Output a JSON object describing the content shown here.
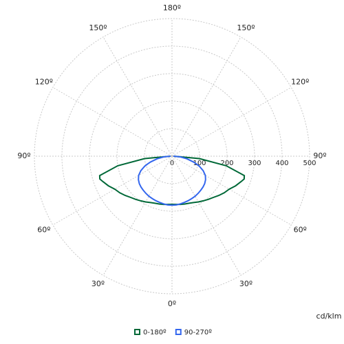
{
  "chart_data": {
    "type": "polar",
    "axis_label": "cd/klm",
    "rlim": [
      0,
      500
    ],
    "rticks": [
      0,
      100,
      200,
      300,
      400,
      500
    ],
    "angle_ticks": [
      {
        "value": 0,
        "label": "0º"
      },
      {
        "value": 30,
        "label": "30º"
      },
      {
        "value": 60,
        "label": "60º"
      },
      {
        "value": 90,
        "label": "90º"
      },
      {
        "value": 120,
        "label": "120º"
      },
      {
        "value": 150,
        "label": "150º"
      },
      {
        "value": 180,
        "label": "180º"
      }
    ],
    "x": [
      0,
      5,
      10,
      15,
      20,
      25,
      30,
      35,
      40,
      45,
      50,
      55,
      60,
      65,
      70,
      72.5,
      75,
      80,
      85,
      90
    ],
    "series": [
      {
        "name": "0-180º",
        "color": "#006837",
        "values": [
          175,
          176,
          178,
          180,
          182,
          186,
          192,
          198,
          205,
          212,
          222,
          232,
          240,
          255,
          268,
          275,
          272,
          200,
          100,
          5
        ]
      },
      {
        "name": "90-270º",
        "color": "#3366ee",
        "values": [
          178,
          178,
          176,
          174,
          172,
          170,
          168,
          165,
          162,
          159,
          155,
          149,
          140,
          125,
          105,
          92,
          80,
          55,
          30,
          5
        ]
      }
    ]
  }
}
